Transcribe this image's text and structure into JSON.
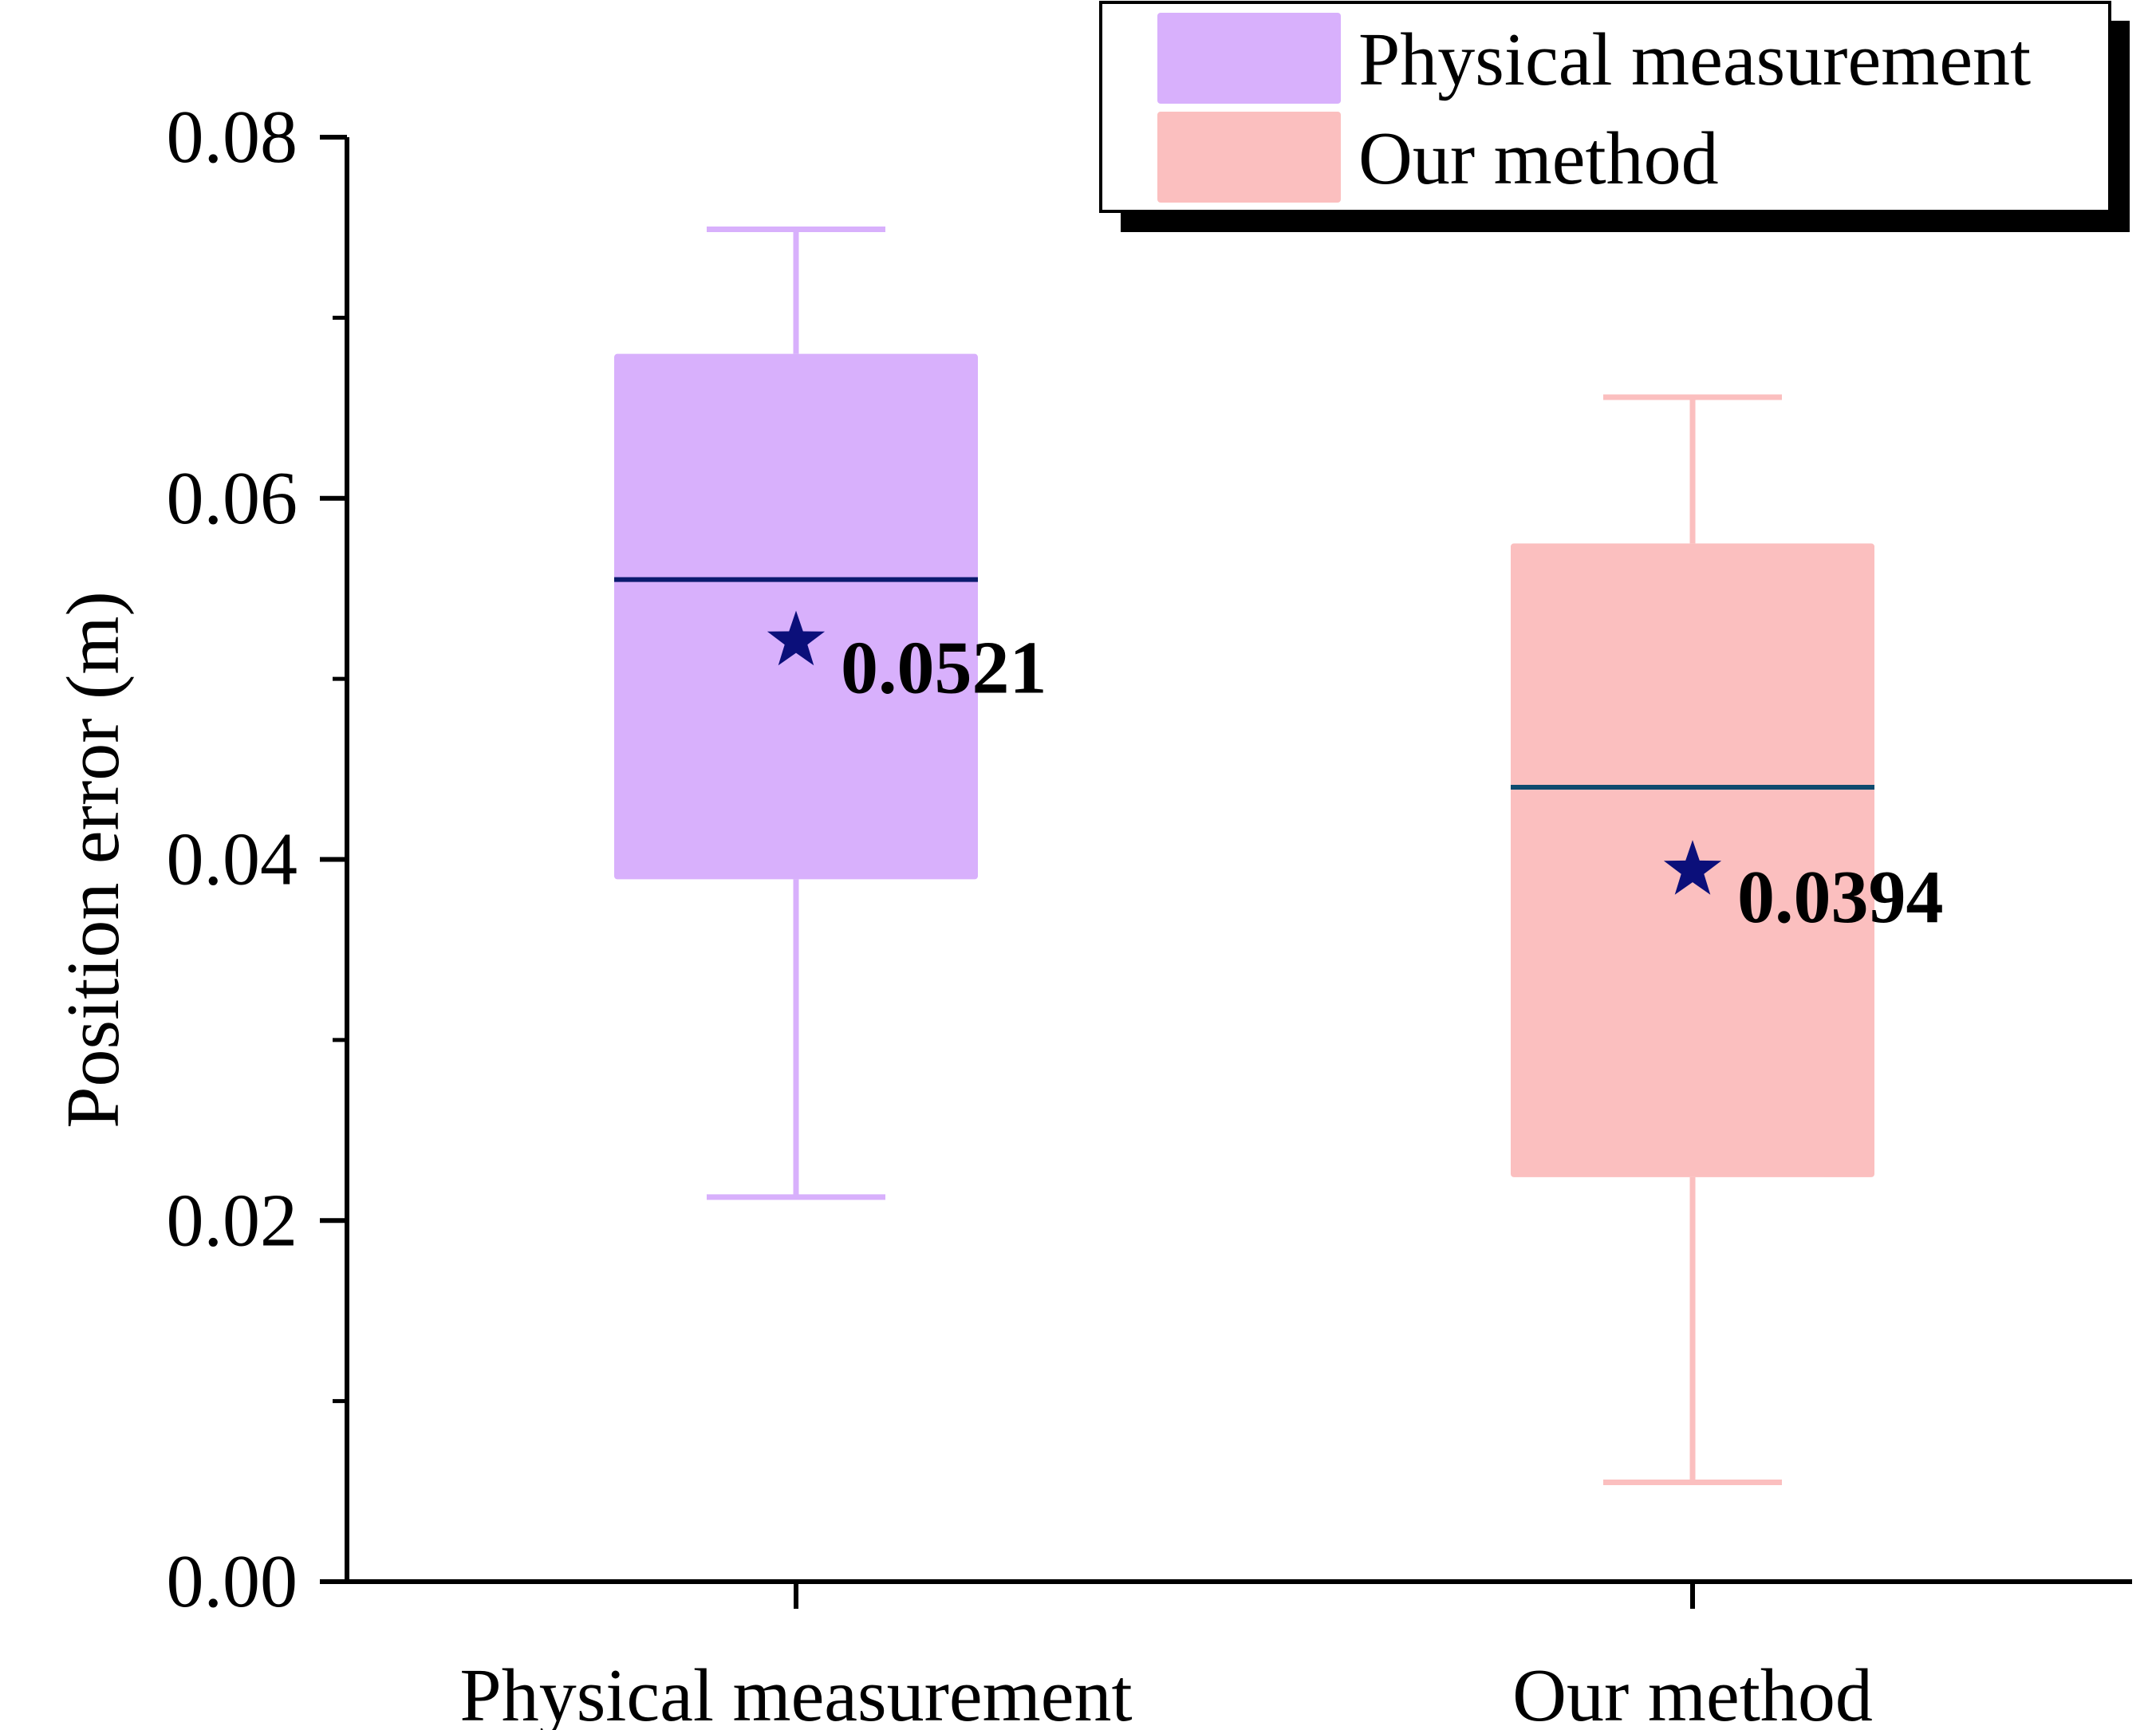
{
  "chart_data": {
    "type": "box",
    "title": "",
    "xlabel": "",
    "ylabel": "Position error (m)",
    "ylim": [
      0,
      0.08
    ],
    "yticks": [
      "0.00",
      "0.02",
      "0.04",
      "0.06",
      "0.08"
    ],
    "ytick_values": [
      0,
      0.02,
      0.04,
      0.06,
      0.08
    ],
    "minor_ytick_values": [
      0.01,
      0.03,
      0.05,
      0.07
    ],
    "categories": [
      "Physical measurement",
      "Our method"
    ],
    "legend_position": "top-right",
    "series": [
      {
        "name": "Physical measurement",
        "color": "#d8b0fc",
        "whisker_low": 0.0213,
        "q1": 0.0389,
        "median": 0.0555,
        "q3": 0.068,
        "whisker_high": 0.0749,
        "mean": 0.0521,
        "mean_label": "0.0521",
        "median_color": "#0b1a6e"
      },
      {
        "name": "Our method",
        "color": "#fbbfbf",
        "whisker_low": 0.0055,
        "q1": 0.0224,
        "median": 0.044,
        "q3": 0.0575,
        "whisker_high": 0.0656,
        "mean": 0.0394,
        "mean_label": "0.0394",
        "median_color": "#0e4a6e"
      }
    ],
    "mean_marker": {
      "shape": "star",
      "color": "#0b0f7a"
    }
  }
}
